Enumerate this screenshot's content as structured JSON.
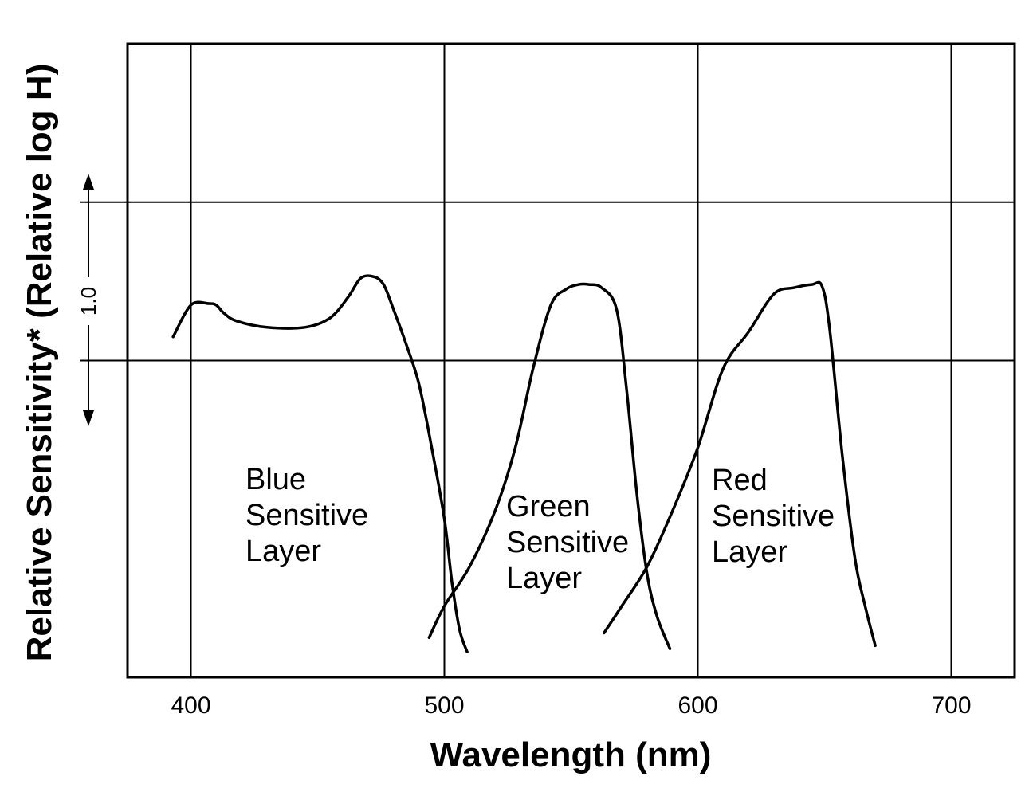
{
  "chart_data": {
    "type": "line",
    "xlabel": "Wavelength (nm)",
    "ylabel": "Relative Sensitivity* (Relative log H)",
    "xlim": [
      375,
      725
    ],
    "x_ticks": [
      400,
      500,
      600,
      700
    ],
    "x_tick_labels": [
      "400",
      "500",
      "600",
      "700"
    ],
    "ylim": [
      -2.0,
      2.0
    ],
    "y_gridlines": [
      0,
      1
    ],
    "scale_bar_label": "1.0",
    "grid": true,
    "series": [
      {
        "name": "Blue Sensitive Layer",
        "x": [
          393,
          400,
          407,
          410,
          413,
          418,
          430,
          445,
          455,
          462,
          467,
          472,
          476,
          480,
          485,
          490,
          495,
          500,
          503,
          506,
          509
        ],
        "y": [
          0.15,
          0.35,
          0.36,
          0.35,
          0.3,
          0.25,
          0.21,
          0.21,
          0.27,
          0.4,
          0.52,
          0.53,
          0.48,
          0.32,
          0.1,
          -0.15,
          -0.55,
          -1.0,
          -1.4,
          -1.7,
          -1.84
        ]
      },
      {
        "name": "Green Sensitive Layer",
        "x": [
          494,
          500,
          510,
          520,
          528,
          535,
          542,
          548,
          553,
          557,
          562,
          568,
          572,
          576,
          580,
          584,
          589
        ],
        "y": [
          -1.75,
          -1.55,
          -1.3,
          -0.95,
          -0.55,
          -0.05,
          0.35,
          0.45,
          0.48,
          0.48,
          0.46,
          0.32,
          -0.2,
          -0.85,
          -1.35,
          -1.62,
          -1.82
        ]
      },
      {
        "name": "Red Sensitive Layer",
        "x": [
          563,
          570,
          580,
          590,
          600,
          610,
          620,
          630,
          638,
          645,
          649,
          652,
          657,
          662,
          666,
          670
        ],
        "y": [
          -1.72,
          -1.55,
          -1.3,
          -0.95,
          -0.55,
          -0.05,
          0.18,
          0.42,
          0.46,
          0.48,
          0.47,
          0.2,
          -0.6,
          -1.25,
          -1.55,
          -1.8
        ]
      }
    ],
    "annotations": [
      {
        "lines": [
          "Blue",
          "Sensitive",
          "Layer"
        ]
      },
      {
        "lines": [
          "Green",
          "Sensitive",
          "Layer"
        ]
      },
      {
        "lines": [
          "Red",
          "Sensitive",
          "Layer"
        ]
      }
    ]
  }
}
